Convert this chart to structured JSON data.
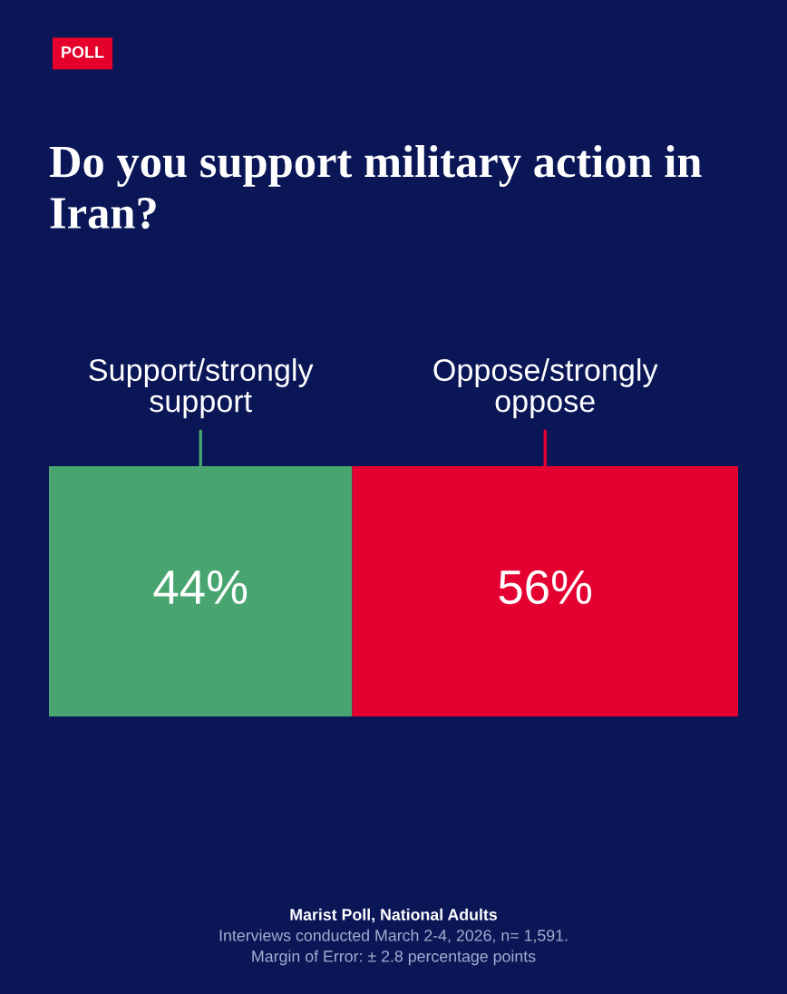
{
  "chart_data": {
    "type": "bar",
    "orientation": "horizontal",
    "stacked": true,
    "title": "Do you support military action in Iran?",
    "categories": [
      null
    ],
    "series": [
      {
        "name": "Support/strongly support",
        "color": "#48a570",
        "values": [
          44
        ],
        "value_labels": [
          "44%"
        ]
      },
      {
        "name": "Oppose/strongly oppose",
        "color": "#e40030",
        "values": [
          56
        ],
        "value_labels": [
          "56%"
        ]
      }
    ],
    "xlim": [
      0,
      100
    ],
    "tick_labels": false,
    "annotations": [
      "POLL",
      "Marist Poll, National Adults",
      "Interviews conducted March 2-4, 2026, n= 1,591.",
      "Margin of Error: ± 2.8 percentage points"
    ]
  }
}
